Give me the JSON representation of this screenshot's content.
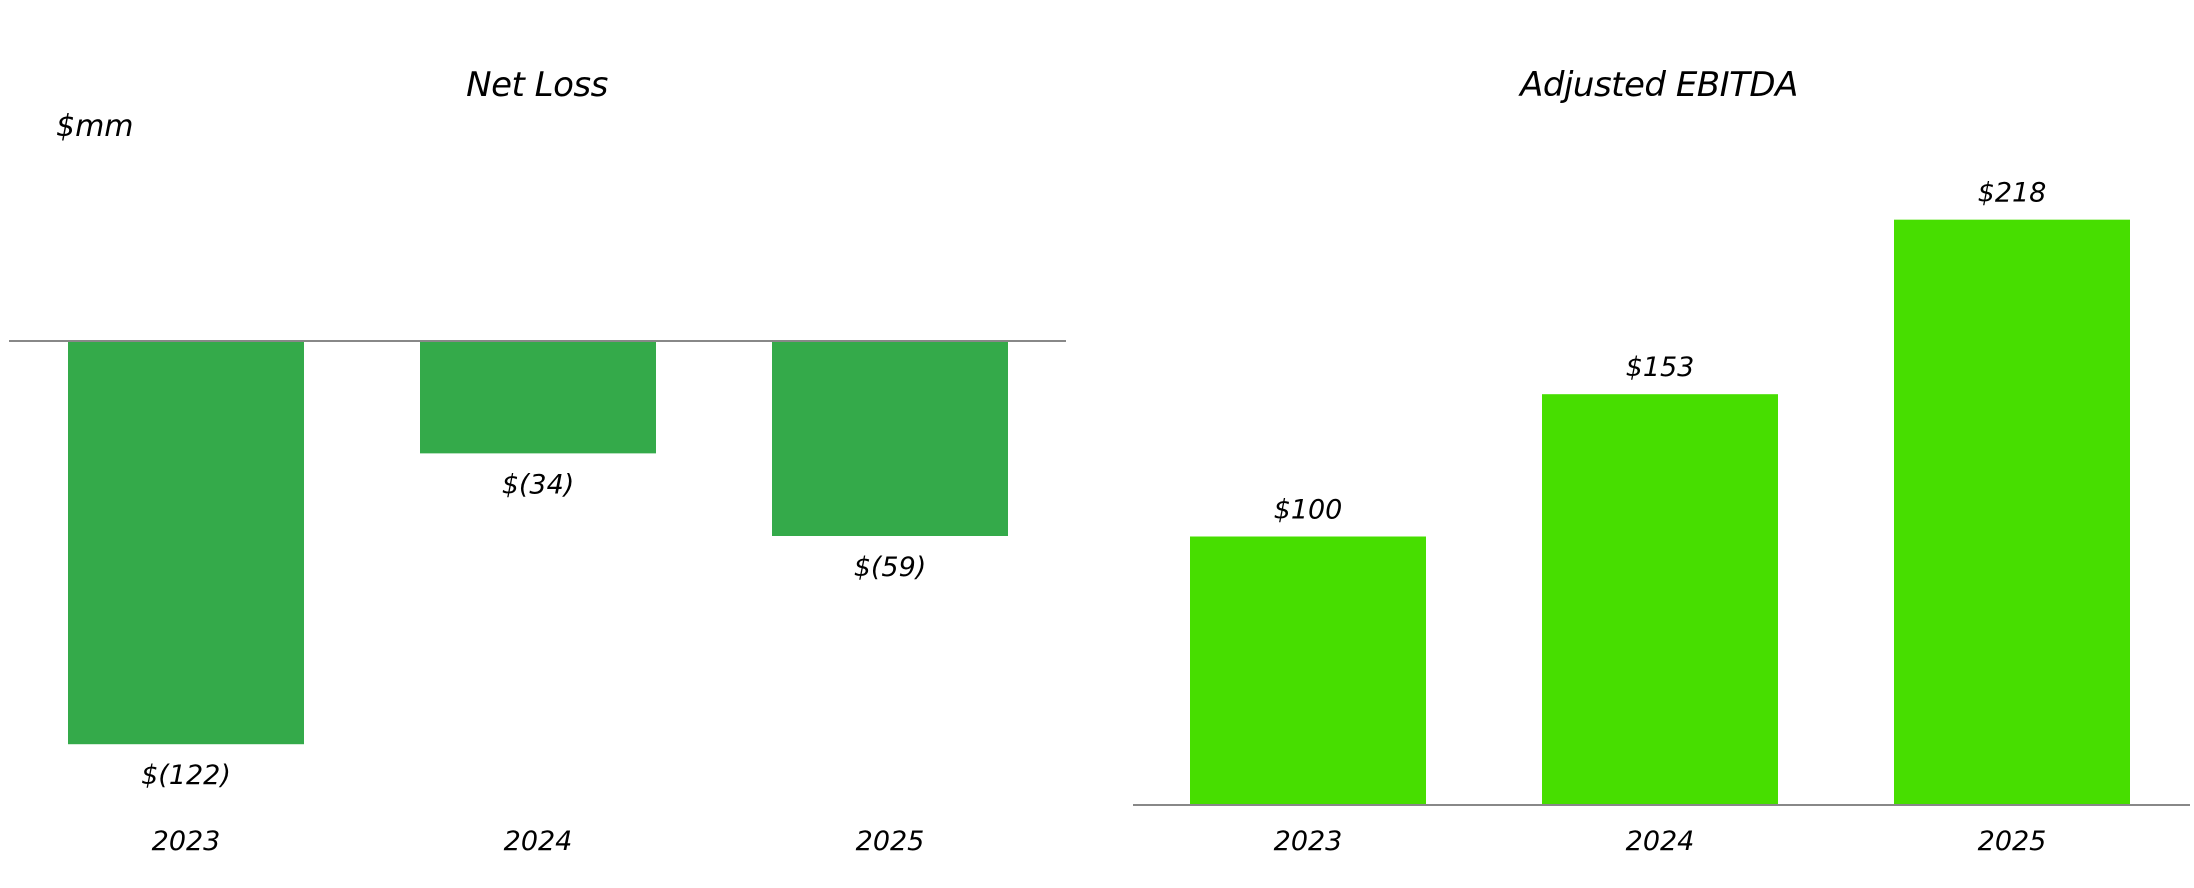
{
  "unit_label": "$mm",
  "colors": {
    "net_loss_bar": "#34AA4A",
    "ebitda_bar": "#47DE00",
    "axis_line": "#888888"
  },
  "chart_data": [
    {
      "type": "bar",
      "title": "Net Loss",
      "categories": [
        "2023",
        "2024",
        "2025"
      ],
      "values": [
        -122,
        -34,
        -59
      ],
      "data_labels": [
        "$(122)",
        "$(34)",
        "$(59)"
      ],
      "xlabel": "",
      "ylabel": "",
      "ylim": [
        -135,
        70
      ],
      "grid": false,
      "legend": "none",
      "baseline": 0
    },
    {
      "type": "bar",
      "title": "Adjusted EBITDA",
      "categories": [
        "2023",
        "2024",
        "2025"
      ],
      "values": [
        100,
        153,
        218
      ],
      "data_labels": [
        "$100",
        "$153",
        "$218"
      ],
      "xlabel": "",
      "ylabel": "",
      "ylim": [
        0,
        240
      ],
      "grid": false,
      "legend": "none",
      "baseline": 0
    }
  ]
}
